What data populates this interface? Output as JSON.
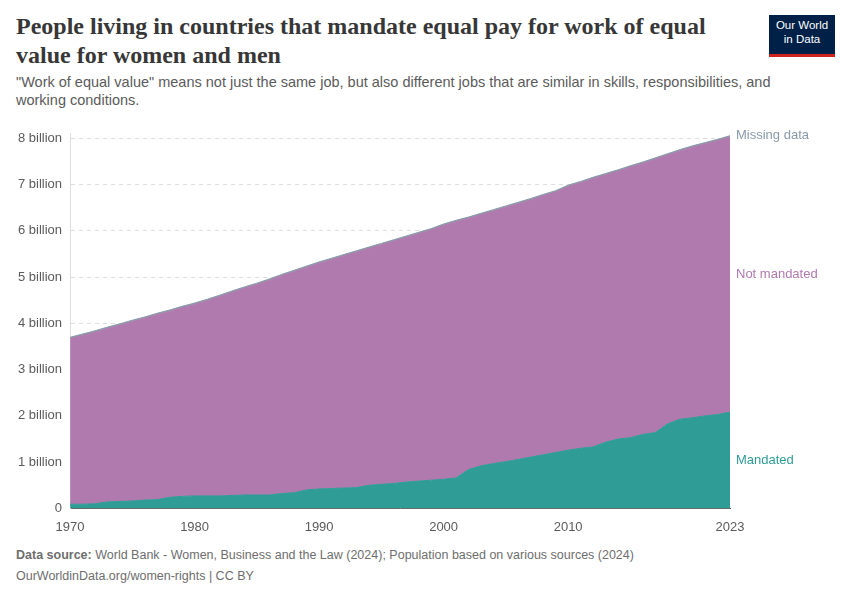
{
  "header": {
    "title": "People living in countries that mandate equal pay for work of equal value for women and men",
    "subtitle": "\"Work of equal value\" means not just the same job, but also different jobs that are similar in skills, responsibilities, and working conditions.",
    "logo": [
      "Our World",
      "in Data"
    ]
  },
  "chart_data": {
    "type": "area",
    "stacked": true,
    "grid": true,
    "x": [
      1970,
      1971,
      1972,
      1973,
      1974,
      1975,
      1976,
      1977,
      1978,
      1979,
      1980,
      1981,
      1982,
      1983,
      1984,
      1985,
      1986,
      1987,
      1988,
      1989,
      1990,
      1991,
      1992,
      1993,
      1994,
      1995,
      1996,
      1997,
      1998,
      1999,
      2000,
      2001,
      2002,
      2003,
      2004,
      2005,
      2006,
      2007,
      2008,
      2009,
      2010,
      2011,
      2012,
      2013,
      2014,
      2015,
      2016,
      2017,
      2018,
      2019,
      2020,
      2021,
      2022,
      2023
    ],
    "xlim": [
      1970,
      2023
    ],
    "xticks": [
      1970,
      1980,
      1990,
      2000,
      2010,
      2023
    ],
    "ylim": [
      0,
      8.1
    ],
    "yticks": [
      0,
      {
        "value": 1,
        "label": "1 billion"
      },
      {
        "value": 2,
        "label": "2 billion"
      },
      {
        "value": 3,
        "label": "3 billion"
      },
      {
        "value": 4,
        "label": "4 billion"
      },
      {
        "value": 5,
        "label": "5 billion"
      },
      {
        "value": 6,
        "label": "6 billion"
      },
      {
        "value": 7,
        "label": "7 billion"
      },
      {
        "value": 8,
        "label": "8 billion"
      }
    ],
    "series": [
      {
        "name": "Mandated",
        "color": "#2f9c96",
        "values": [
          0.09,
          0.09,
          0.1,
          0.14,
          0.15,
          0.16,
          0.18,
          0.19,
          0.24,
          0.26,
          0.27,
          0.27,
          0.27,
          0.28,
          0.29,
          0.29,
          0.29,
          0.32,
          0.34,
          0.4,
          0.42,
          0.43,
          0.44,
          0.45,
          0.5,
          0.52,
          0.54,
          0.57,
          0.59,
          0.61,
          0.63,
          0.66,
          0.84,
          0.92,
          0.97,
          1.01,
          1.06,
          1.11,
          1.16,
          1.21,
          1.26,
          1.3,
          1.33,
          1.43,
          1.5,
          1.53,
          1.6,
          1.64,
          1.83,
          1.93,
          1.96,
          2.0,
          2.03,
          2.08
        ]
      },
      {
        "name": "Not mandated",
        "color": "#b07aae",
        "values": [
          3.58,
          3.65,
          3.71,
          3.75,
          3.81,
          3.88,
          3.93,
          4.0,
          4.02,
          4.08,
          4.14,
          4.22,
          4.31,
          4.39,
          4.47,
          4.55,
          4.64,
          4.71,
          4.78,
          4.81,
          4.88,
          4.95,
          5.02,
          5.09,
          5.12,
          5.18,
          5.24,
          5.29,
          5.35,
          5.41,
          5.49,
          5.54,
          5.43,
          5.43,
          5.46,
          5.5,
          5.53,
          5.56,
          5.6,
          5.63,
          5.7,
          5.74,
          5.8,
          5.78,
          5.79,
          5.85,
          5.86,
          5.91,
          5.81,
          5.8,
          5.85,
          5.88,
          5.92,
          5.95
        ]
      },
      {
        "name": "Missing data",
        "color": "#8a9aa8",
        "values": [
          0.03,
          0.03,
          0.03,
          0.03,
          0.03,
          0.03,
          0.03,
          0.03,
          0.03,
          0.03,
          0.03,
          0.03,
          0.03,
          0.03,
          0.03,
          0.03,
          0.03,
          0.03,
          0.03,
          0.03,
          0.03,
          0.03,
          0.03,
          0.03,
          0.03,
          0.03,
          0.03,
          0.03,
          0.03,
          0.03,
          0.03,
          0.03,
          0.03,
          0.03,
          0.03,
          0.03,
          0.03,
          0.03,
          0.03,
          0.03,
          0.03,
          0.03,
          0.03,
          0.03,
          0.03,
          0.03,
          0.03,
          0.03,
          0.03,
          0.03,
          0.03,
          0.03,
          0.03,
          0.03
        ]
      }
    ]
  },
  "footer": {
    "source_label": "Data source:",
    "source": "World Bank - Women, Business and the Law (2024); Population based on various sources (2024)",
    "credit": "OurWorldinData.org/women-rights | CC BY"
  }
}
